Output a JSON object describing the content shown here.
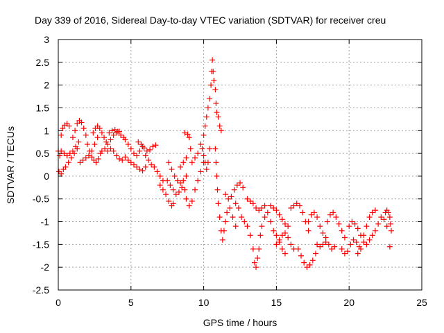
{
  "chart_data": {
    "type": "scatter",
    "title": "Day 339 of 2016, Sidereal Day-to-day VTEC variation (SDTVAR) for receiver creu",
    "xlabel": "GPS time / hours",
    "ylabel": "SDTVAR / TECUs",
    "xlim": [
      0,
      25
    ],
    "ylim": [
      -2.5,
      3
    ],
    "x_ticks": [
      0,
      5,
      10,
      15,
      20,
      25
    ],
    "x_tick_labels": [
      "0",
      "5",
      "10",
      "15",
      "20",
      "25"
    ],
    "y_ticks": [
      -2.5,
      -2,
      -1.5,
      -1,
      -0.5,
      0,
      0.5,
      1,
      1.5,
      2,
      2.5,
      3
    ],
    "y_tick_labels": [
      "-2.5",
      "-2",
      "-1.5",
      "-1",
      "-0.5",
      "0",
      "0.5",
      "1",
      "1.5",
      "2",
      "2.5",
      "3"
    ],
    "grid": true,
    "marker": "+",
    "marker_color": "#ff0000",
    "series": [
      {
        "name": "SDTVAR",
        "color": "#ff0000",
        "points": [
          [
            0.0,
            0.55
          ],
          [
            0.1,
            0.45
          ],
          [
            0.2,
            0.9
          ],
          [
            0.3,
            1.05
          ],
          [
            0.45,
            1.12
          ],
          [
            0.6,
            1.15
          ],
          [
            0.75,
            1.1
          ],
          [
            0.05,
            0.1
          ],
          [
            0.2,
            0.05
          ],
          [
            0.35,
            0.15
          ],
          [
            0.5,
            0.2
          ],
          [
            0.7,
            0.3
          ],
          [
            0.9,
            0.4
          ],
          [
            1.1,
            0.5
          ],
          [
            1.3,
            0.6
          ],
          [
            0.2,
            0.55
          ],
          [
            0.4,
            0.5
          ],
          [
            0.6,
            0.45
          ],
          [
            0.8,
            0.5
          ],
          [
            1.0,
            0.55
          ],
          [
            1.2,
            0.65
          ],
          [
            1.4,
            0.75
          ],
          [
            1.0,
            0.85
          ],
          [
            1.15,
            1.0
          ],
          [
            1.3,
            1.15
          ],
          [
            1.45,
            1.22
          ],
          [
            1.6,
            1.18
          ],
          [
            1.75,
            1.05
          ],
          [
            1.9,
            0.9
          ],
          [
            2.0,
            0.7
          ],
          [
            2.15,
            0.55
          ],
          [
            2.3,
            0.42
          ],
          [
            2.45,
            0.35
          ],
          [
            2.6,
            0.3
          ],
          [
            2.75,
            0.38
          ],
          [
            2.9,
            0.5
          ],
          [
            1.5,
            0.3
          ],
          [
            1.7,
            0.35
          ],
          [
            1.9,
            0.4
          ],
          [
            2.1,
            0.45
          ],
          [
            2.3,
            0.55
          ],
          [
            2.5,
            0.7
          ],
          [
            2.7,
            0.85
          ],
          [
            2.4,
            0.95
          ],
          [
            2.55,
            1.05
          ],
          [
            2.7,
            1.1
          ],
          [
            2.85,
            1.05
          ],
          [
            3.0,
            0.95
          ],
          [
            3.15,
            0.85
          ],
          [
            3.3,
            0.75
          ],
          [
            3.0,
            0.55
          ],
          [
            3.2,
            0.6
          ],
          [
            3.4,
            0.7
          ],
          [
            3.6,
            0.8
          ],
          [
            3.8,
            0.9
          ],
          [
            4.0,
            0.95
          ],
          [
            4.2,
            0.98
          ],
          [
            3.5,
            0.95
          ],
          [
            3.7,
            1.0
          ],
          [
            3.9,
            1.02
          ],
          [
            4.1,
            0.98
          ],
          [
            4.3,
            0.9
          ],
          [
            4.5,
            0.85
          ],
          [
            3.4,
            0.55
          ],
          [
            3.6,
            0.6
          ],
          [
            3.8,
            0.55
          ],
          [
            4.0,
            0.45
          ],
          [
            4.2,
            0.38
          ],
          [
            4.4,
            0.35
          ],
          [
            4.6,
            0.42
          ],
          [
            4.6,
            0.8
          ],
          [
            4.8,
            0.7
          ],
          [
            5.0,
            0.6
          ],
          [
            5.2,
            0.5
          ],
          [
            5.4,
            0.45
          ],
          [
            5.6,
            0.55
          ],
          [
            5.8,
            0.65
          ],
          [
            4.8,
            0.35
          ],
          [
            5.0,
            0.3
          ],
          [
            5.2,
            0.25
          ],
          [
            5.4,
            0.2
          ],
          [
            5.6,
            0.15
          ],
          [
            5.8,
            0.12
          ],
          [
            6.0,
            0.2
          ],
          [
            5.5,
            0.75
          ],
          [
            5.7,
            0.7
          ],
          [
            5.9,
            0.62
          ],
          [
            6.1,
            0.55
          ],
          [
            6.3,
            0.58
          ],
          [
            6.5,
            0.65
          ],
          [
            6.7,
            0.68
          ],
          [
            6.0,
            0.45
          ],
          [
            6.2,
            0.35
          ],
          [
            6.4,
            0.25
          ],
          [
            6.6,
            0.2
          ],
          [
            6.8,
            0.1
          ],
          [
            7.0,
            0.0
          ],
          [
            7.2,
            -0.1
          ],
          [
            7.0,
            -0.2
          ],
          [
            7.2,
            -0.3
          ],
          [
            7.4,
            -0.4
          ],
          [
            7.6,
            -0.55
          ],
          [
            7.8,
            -0.65
          ],
          [
            7.9,
            -0.6
          ],
          [
            7.5,
            -0.1
          ],
          [
            7.7,
            -0.2
          ],
          [
            7.9,
            -0.3
          ],
          [
            8.1,
            -0.4
          ],
          [
            8.3,
            -0.35
          ],
          [
            8.5,
            -0.25
          ],
          [
            8.7,
            -0.3
          ],
          [
            7.6,
            0.3
          ],
          [
            7.8,
            0.15
          ],
          [
            8.0,
            0.0
          ],
          [
            8.2,
            -0.1
          ],
          [
            8.4,
            -0.15
          ],
          [
            8.6,
            -0.1
          ],
          [
            8.8,
            0.0
          ],
          [
            8.4,
            0.2
          ],
          [
            8.6,
            0.3
          ],
          [
            8.8,
            0.4
          ],
          [
            8.7,
            0.95
          ],
          [
            8.9,
            0.92
          ],
          [
            9.0,
            0.85
          ],
          [
            9.1,
            0.6
          ],
          [
            8.8,
            -0.5
          ],
          [
            9.0,
            -0.65
          ],
          [
            9.2,
            -0.55
          ],
          [
            9.4,
            -0.3
          ],
          [
            9.6,
            -0.1
          ],
          [
            9.8,
            0.1
          ],
          [
            10.0,
            0.3
          ],
          [
            9.2,
            0.3
          ],
          [
            9.4,
            0.4
          ],
          [
            9.6,
            0.5
          ],
          [
            9.8,
            0.7
          ],
          [
            10.0,
            0.9
          ],
          [
            10.1,
            1.1
          ],
          [
            10.2,
            1.3
          ],
          [
            9.9,
            0.6
          ],
          [
            10.0,
            0.45
          ],
          [
            10.1,
            0.3
          ],
          [
            10.2,
            0.15
          ],
          [
            10.3,
            0.3
          ],
          [
            10.4,
            0.6
          ],
          [
            10.3,
            1.5
          ],
          [
            10.4,
            1.7
          ],
          [
            10.5,
            2.0
          ],
          [
            10.55,
            2.3
          ],
          [
            10.6,
            2.55
          ],
          [
            10.65,
            2.3
          ],
          [
            10.7,
            2.1
          ],
          [
            10.8,
            1.9
          ],
          [
            10.85,
            1.6
          ],
          [
            10.9,
            1.4
          ],
          [
            11.0,
            1.3
          ],
          [
            11.1,
            1.1
          ],
          [
            11.2,
            1.0
          ],
          [
            10.8,
            0.6
          ],
          [
            10.85,
            0.3
          ],
          [
            10.9,
            0.0
          ],
          [
            10.95,
            -0.3
          ],
          [
            11.0,
            -0.6
          ],
          [
            11.1,
            -0.9
          ],
          [
            11.2,
            -1.2
          ],
          [
            11.3,
            -1.4
          ],
          [
            11.4,
            -1.2
          ],
          [
            11.5,
            -1.0
          ],
          [
            11.6,
            -0.8
          ],
          [
            11.8,
            -0.7
          ],
          [
            12.0,
            -0.9
          ],
          [
            12.2,
            -1.1
          ],
          [
            11.5,
            -0.4
          ],
          [
            11.7,
            -0.5
          ],
          [
            11.9,
            -0.45
          ],
          [
            12.1,
            -0.3
          ],
          [
            12.3,
            -0.2
          ],
          [
            12.5,
            -0.15
          ],
          [
            12.7,
            -0.25
          ],
          [
            12.2,
            -0.6
          ],
          [
            12.4,
            -0.7
          ],
          [
            12.6,
            -0.9
          ],
          [
            12.8,
            -1.0
          ],
          [
            13.0,
            -1.1
          ],
          [
            13.2,
            -1.3
          ],
          [
            13.4,
            -1.6
          ],
          [
            13.5,
            -1.9
          ],
          [
            13.6,
            -2.0
          ],
          [
            13.7,
            -1.8
          ],
          [
            13.8,
            -1.6
          ],
          [
            13.9,
            -1.3
          ],
          [
            14.0,
            -1.1
          ],
          [
            14.2,
            -0.9
          ],
          [
            13.0,
            -0.5
          ],
          [
            13.2,
            -0.55
          ],
          [
            13.4,
            -0.6
          ],
          [
            13.6,
            -0.7
          ],
          [
            13.8,
            -0.75
          ],
          [
            14.0,
            -0.7
          ],
          [
            14.2,
            -0.65
          ],
          [
            14.4,
            -0.8
          ],
          [
            14.6,
            -1.0
          ],
          [
            14.8,
            -1.2
          ],
          [
            15.0,
            -1.3
          ],
          [
            15.2,
            -1.45
          ],
          [
            15.4,
            -1.6
          ],
          [
            15.6,
            -1.7
          ],
          [
            14.6,
            -0.65
          ],
          [
            14.8,
            -0.7
          ],
          [
            15.0,
            -0.75
          ],
          [
            15.2,
            -0.85
          ],
          [
            15.4,
            -0.95
          ],
          [
            15.6,
            -1.05
          ],
          [
            15.8,
            -1.1
          ],
          [
            15.0,
            -1.5
          ],
          [
            15.2,
            -1.4
          ],
          [
            15.4,
            -1.3
          ],
          [
            15.6,
            -1.25
          ],
          [
            15.8,
            -1.35
          ],
          [
            16.0,
            -1.5
          ],
          [
            16.2,
            -1.6
          ],
          [
            16.0,
            -0.7
          ],
          [
            16.2,
            -0.65
          ],
          [
            16.4,
            -0.6
          ],
          [
            16.6,
            -0.65
          ],
          [
            16.8,
            -0.8
          ],
          [
            17.0,
            -1.0
          ],
          [
            17.2,
            -1.2
          ],
          [
            16.5,
            -1.6
          ],
          [
            16.7,
            -1.75
          ],
          [
            16.9,
            -1.9
          ],
          [
            17.1,
            -2.0
          ],
          [
            17.3,
            -1.95
          ],
          [
            17.5,
            -1.85
          ],
          [
            17.7,
            -1.7
          ],
          [
            17.2,
            -1.0
          ],
          [
            17.4,
            -0.85
          ],
          [
            17.6,
            -0.8
          ],
          [
            17.8,
            -0.9
          ],
          [
            18.0,
            -1.1
          ],
          [
            18.2,
            -1.25
          ],
          [
            18.4,
            -1.35
          ],
          [
            17.8,
            -1.5
          ],
          [
            18.0,
            -1.55
          ],
          [
            18.2,
            -1.5
          ],
          [
            18.4,
            -1.45
          ],
          [
            18.6,
            -1.5
          ],
          [
            18.8,
            -1.6
          ],
          [
            19.0,
            -1.55
          ],
          [
            18.5,
            -1.0
          ],
          [
            18.7,
            -0.85
          ],
          [
            18.9,
            -0.8
          ],
          [
            19.1,
            -0.9
          ],
          [
            19.3,
            -1.05
          ],
          [
            19.5,
            -1.2
          ],
          [
            19.7,
            -1.35
          ],
          [
            19.5,
            -1.6
          ],
          [
            19.7,
            -1.7
          ],
          [
            19.9,
            -1.65
          ],
          [
            20.1,
            -1.5
          ],
          [
            20.3,
            -1.4
          ],
          [
            20.5,
            -1.45
          ],
          [
            20.7,
            -1.55
          ],
          [
            20.0,
            -1.1
          ],
          [
            20.2,
            -1.0
          ],
          [
            20.4,
            -1.05
          ],
          [
            20.6,
            -1.15
          ],
          [
            20.8,
            -1.3
          ],
          [
            21.0,
            -1.45
          ],
          [
            21.2,
            -1.5
          ],
          [
            20.6,
            -1.7
          ],
          [
            20.8,
            -1.6
          ],
          [
            21.0,
            -1.3
          ],
          [
            21.2,
            -1.1
          ],
          [
            21.4,
            -0.9
          ],
          [
            21.6,
            -0.8
          ],
          [
            21.8,
            -0.75
          ],
          [
            21.4,
            -1.4
          ],
          [
            21.6,
            -1.3
          ],
          [
            21.8,
            -1.2
          ],
          [
            22.0,
            -1.05
          ],
          [
            22.2,
            -0.9
          ],
          [
            22.4,
            -0.95
          ],
          [
            22.6,
            -1.1
          ],
          [
            22.5,
            -0.8
          ],
          [
            22.6,
            -0.75
          ],
          [
            22.7,
            -0.8
          ],
          [
            22.8,
            -0.9
          ],
          [
            22.85,
            -1.05
          ],
          [
            22.9,
            -1.2
          ],
          [
            22.8,
            -1.55
          ]
        ]
      }
    ]
  }
}
